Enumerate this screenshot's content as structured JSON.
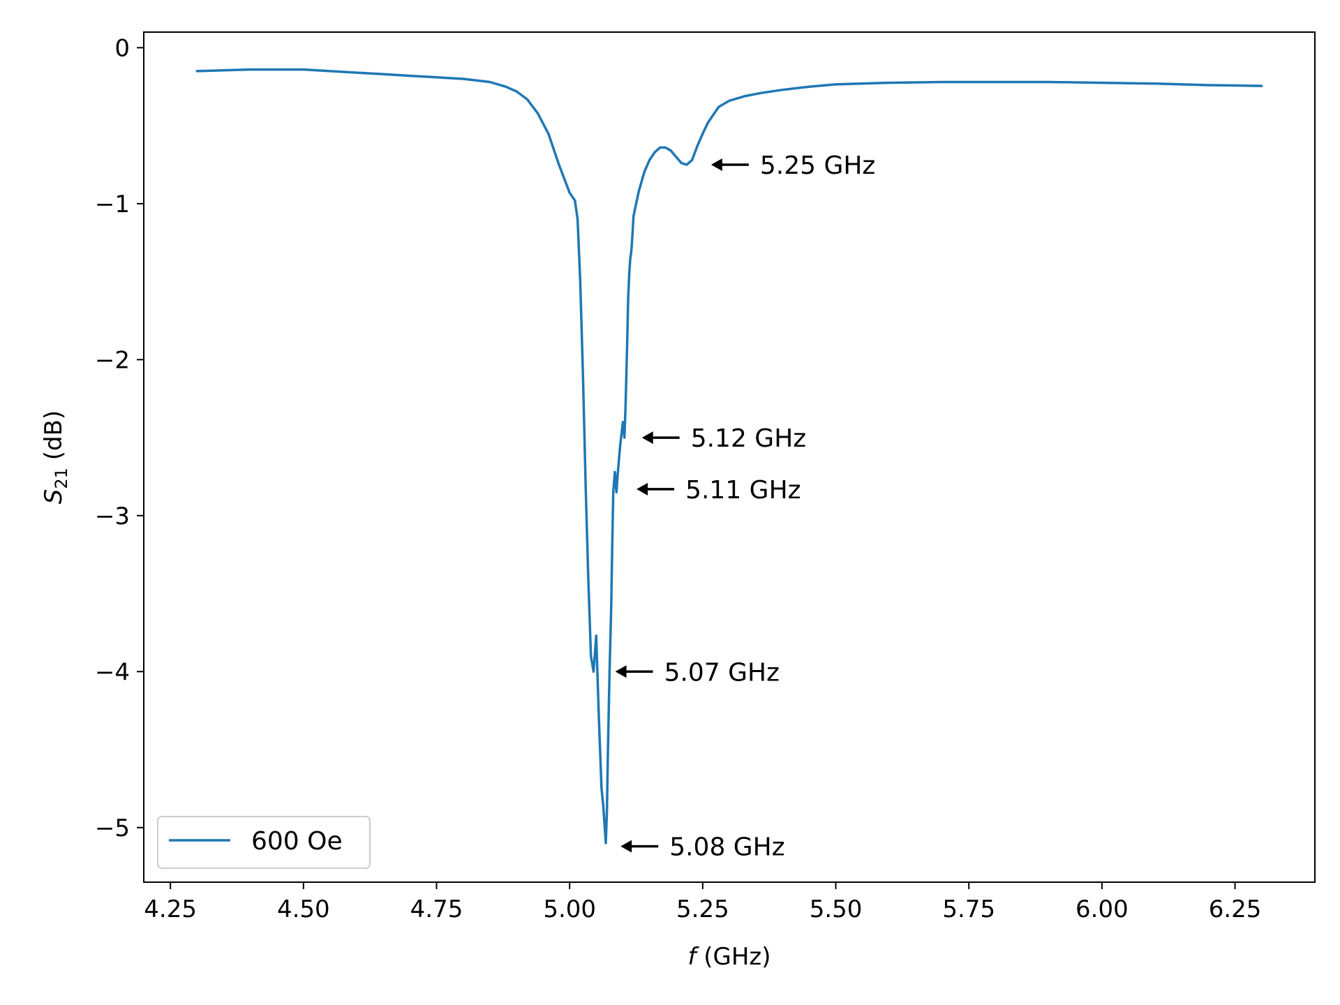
{
  "chart_data": {
    "type": "line",
    "xlabel": "f (GHz)",
    "xlabel_italic": "f",
    "xlabel_rest": " (GHz)",
    "ylabel": "S21 (dB)",
    "ylabel_main": "S",
    "ylabel_sub": "21",
    "ylabel_rest": " (dB)",
    "xlim": [
      4.2,
      6.4
    ],
    "ylim": [
      -5.35,
      0.1
    ],
    "x_ticks": [
      4.25,
      4.5,
      4.75,
      5.0,
      5.25,
      5.5,
      5.75,
      6.0,
      6.25
    ],
    "x_tick_labels": [
      "4.25",
      "4.50",
      "4.75",
      "5.00",
      "5.25",
      "5.50",
      "5.75",
      "6.00",
      "6.25"
    ],
    "y_ticks": [
      0,
      -1,
      -2,
      -3,
      -4,
      -5
    ],
    "y_tick_labels": [
      "0",
      "−1",
      "−2",
      "−3",
      "−4",
      "−5"
    ],
    "grid": false,
    "legend": {
      "position": "lower-left"
    },
    "colors": {
      "series": "#1f77b4",
      "axes": "#000000"
    },
    "series": [
      {
        "name": "600 Oe",
        "x": [
          4.3,
          4.35,
          4.4,
          4.45,
          4.5,
          4.55,
          4.6,
          4.65,
          4.7,
          4.75,
          4.8,
          4.85,
          4.88,
          4.9,
          4.92,
          4.94,
          4.96,
          4.98,
          5.0,
          5.01,
          5.015,
          5.02,
          5.025,
          5.03,
          5.035,
          5.04,
          5.045,
          5.05,
          5.055,
          5.06,
          5.063,
          5.066,
          5.068,
          5.07,
          5.072,
          5.075,
          5.078,
          5.08,
          5.082,
          5.085,
          5.088,
          5.09,
          5.095,
          5.1,
          5.103,
          5.105,
          5.108,
          5.11,
          5.112,
          5.114,
          5.116,
          5.118,
          5.12,
          5.125,
          5.13,
          5.14,
          5.15,
          5.16,
          5.17,
          5.18,
          5.19,
          5.2,
          5.21,
          5.22,
          5.23,
          5.24,
          5.25,
          5.26,
          5.27,
          5.28,
          5.3,
          5.33,
          5.36,
          5.4,
          5.45,
          5.5,
          5.6,
          5.7,
          5.8,
          5.9,
          6.0,
          6.1,
          6.2,
          6.3
        ],
        "values": [
          -0.15,
          -0.145,
          -0.14,
          -0.14,
          -0.14,
          -0.15,
          -0.16,
          -0.17,
          -0.18,
          -0.19,
          -0.2,
          -0.22,
          -0.25,
          -0.28,
          -0.33,
          -0.42,
          -0.55,
          -0.75,
          -0.93,
          -0.98,
          -1.1,
          -1.5,
          -2.1,
          -2.8,
          -3.4,
          -3.9,
          -4.0,
          -3.77,
          -4.3,
          -4.75,
          -4.85,
          -5.0,
          -5.1,
          -4.9,
          -4.5,
          -4.0,
          -3.6,
          -3.2,
          -2.85,
          -2.72,
          -2.85,
          -2.75,
          -2.55,
          -2.4,
          -2.5,
          -2.3,
          -1.9,
          -1.6,
          -1.45,
          -1.35,
          -1.3,
          -1.2,
          -1.08,
          -1.0,
          -0.92,
          -0.8,
          -0.72,
          -0.67,
          -0.64,
          -0.64,
          -0.66,
          -0.7,
          -0.74,
          -0.75,
          -0.72,
          -0.63,
          -0.55,
          -0.48,
          -0.43,
          -0.38,
          -0.34,
          -0.31,
          -0.29,
          -0.27,
          -0.25,
          -0.235,
          -0.225,
          -0.22,
          -0.22,
          -0.22,
          -0.225,
          -0.23,
          -0.24,
          -0.245
        ]
      }
    ],
    "annotations": [
      {
        "text": "5.25 GHz",
        "x": 5.25,
        "y": -0.75
      },
      {
        "text": "5.12 GHz",
        "x": 5.12,
        "y": -2.5
      },
      {
        "text": "5.11 GHz",
        "x": 5.11,
        "y": -2.83
      },
      {
        "text": "5.07 GHz",
        "x": 5.07,
        "y": -4.0
      },
      {
        "text": "5.08 GHz",
        "x": 5.08,
        "y": -5.12
      }
    ]
  }
}
